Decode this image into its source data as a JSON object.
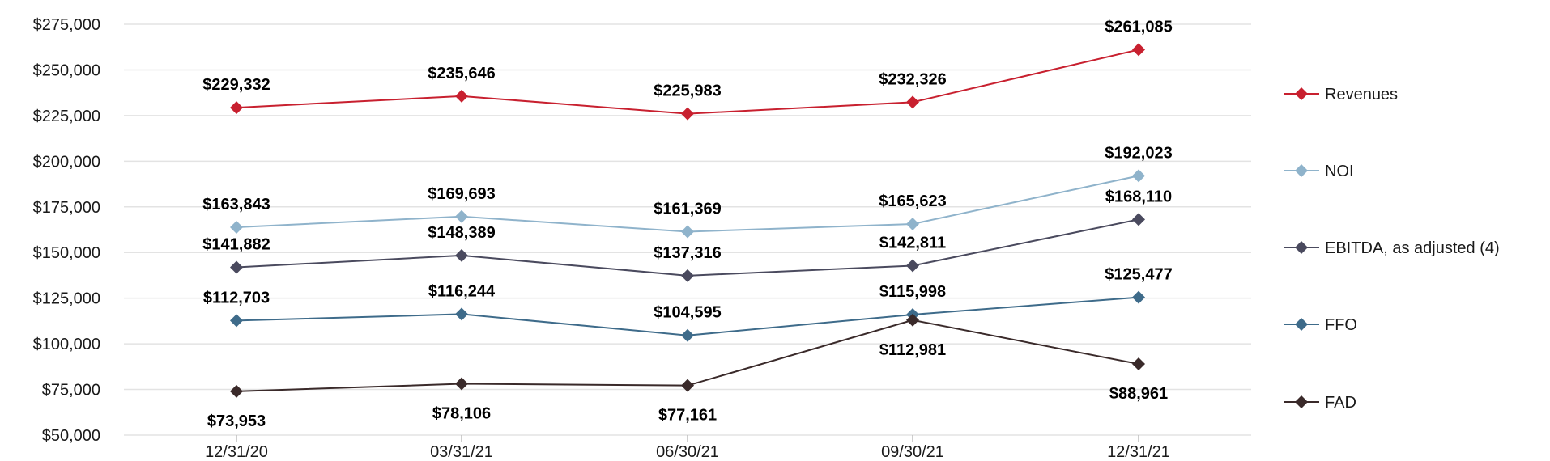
{
  "chart_data": {
    "type": "line",
    "categories": [
      "12/31/20",
      "03/31/21",
      "06/30/21",
      "09/30/21",
      "12/31/21"
    ],
    "ylim": [
      50000,
      275000
    ],
    "yticks": [
      50000,
      75000,
      100000,
      125000,
      150000,
      175000,
      200000,
      225000,
      250000,
      275000
    ],
    "ytick_labels": [
      "$50,000",
      "$75,000",
      "$100,000",
      "$125,000",
      "$150,000",
      "$175,000",
      "$200,000",
      "$225,000",
      "$250,000",
      "$275,000"
    ],
    "grid": "horizontal",
    "legend_position": "right",
    "series": [
      {
        "name": "Revenues",
        "color": "#c8202f",
        "values": [
          229332,
          235646,
          225983,
          232326,
          261085
        ],
        "labels": [
          "$229,332",
          "$235,646",
          "$225,983",
          "$232,326",
          "$261,085"
        ],
        "label_pos": [
          "above",
          "above",
          "above",
          "above",
          "above"
        ]
      },
      {
        "name": "NOI",
        "color": "#8fb3cb",
        "values": [
          163843,
          169693,
          161369,
          165623,
          192023
        ],
        "labels": [
          "$163,843",
          "$169,693",
          "$161,369",
          "$165,623",
          "$192,023"
        ],
        "label_pos": [
          "above",
          "above",
          "above",
          "above",
          "above"
        ]
      },
      {
        "name": "EBITDA, as adjusted (4)",
        "color": "#4a4a5e",
        "values": [
          141882,
          148389,
          137316,
          142811,
          168110
        ],
        "labels": [
          "$141,882",
          "$148,389",
          "$137,316",
          "$142,811",
          "$168,110"
        ],
        "label_pos": [
          "above",
          "above",
          "above",
          "above",
          "above"
        ]
      },
      {
        "name": "FFO",
        "color": "#3e6b8a",
        "values": [
          112703,
          116244,
          104595,
          115998,
          125477
        ],
        "labels": [
          "$112,703",
          "$116,244",
          "$104,595",
          "$115,998",
          "$125,477"
        ],
        "label_pos": [
          "above",
          "above",
          "above",
          "above",
          "above"
        ]
      },
      {
        "name": "FAD",
        "color": "#3a2a2a",
        "values": [
          73953,
          78106,
          77161,
          112981,
          88961
        ],
        "labels": [
          "$73,953",
          "$78,106",
          "$77,161",
          "$112,981",
          "$88,961"
        ],
        "label_pos": [
          "below",
          "below",
          "below",
          "below",
          "below"
        ]
      }
    ]
  }
}
